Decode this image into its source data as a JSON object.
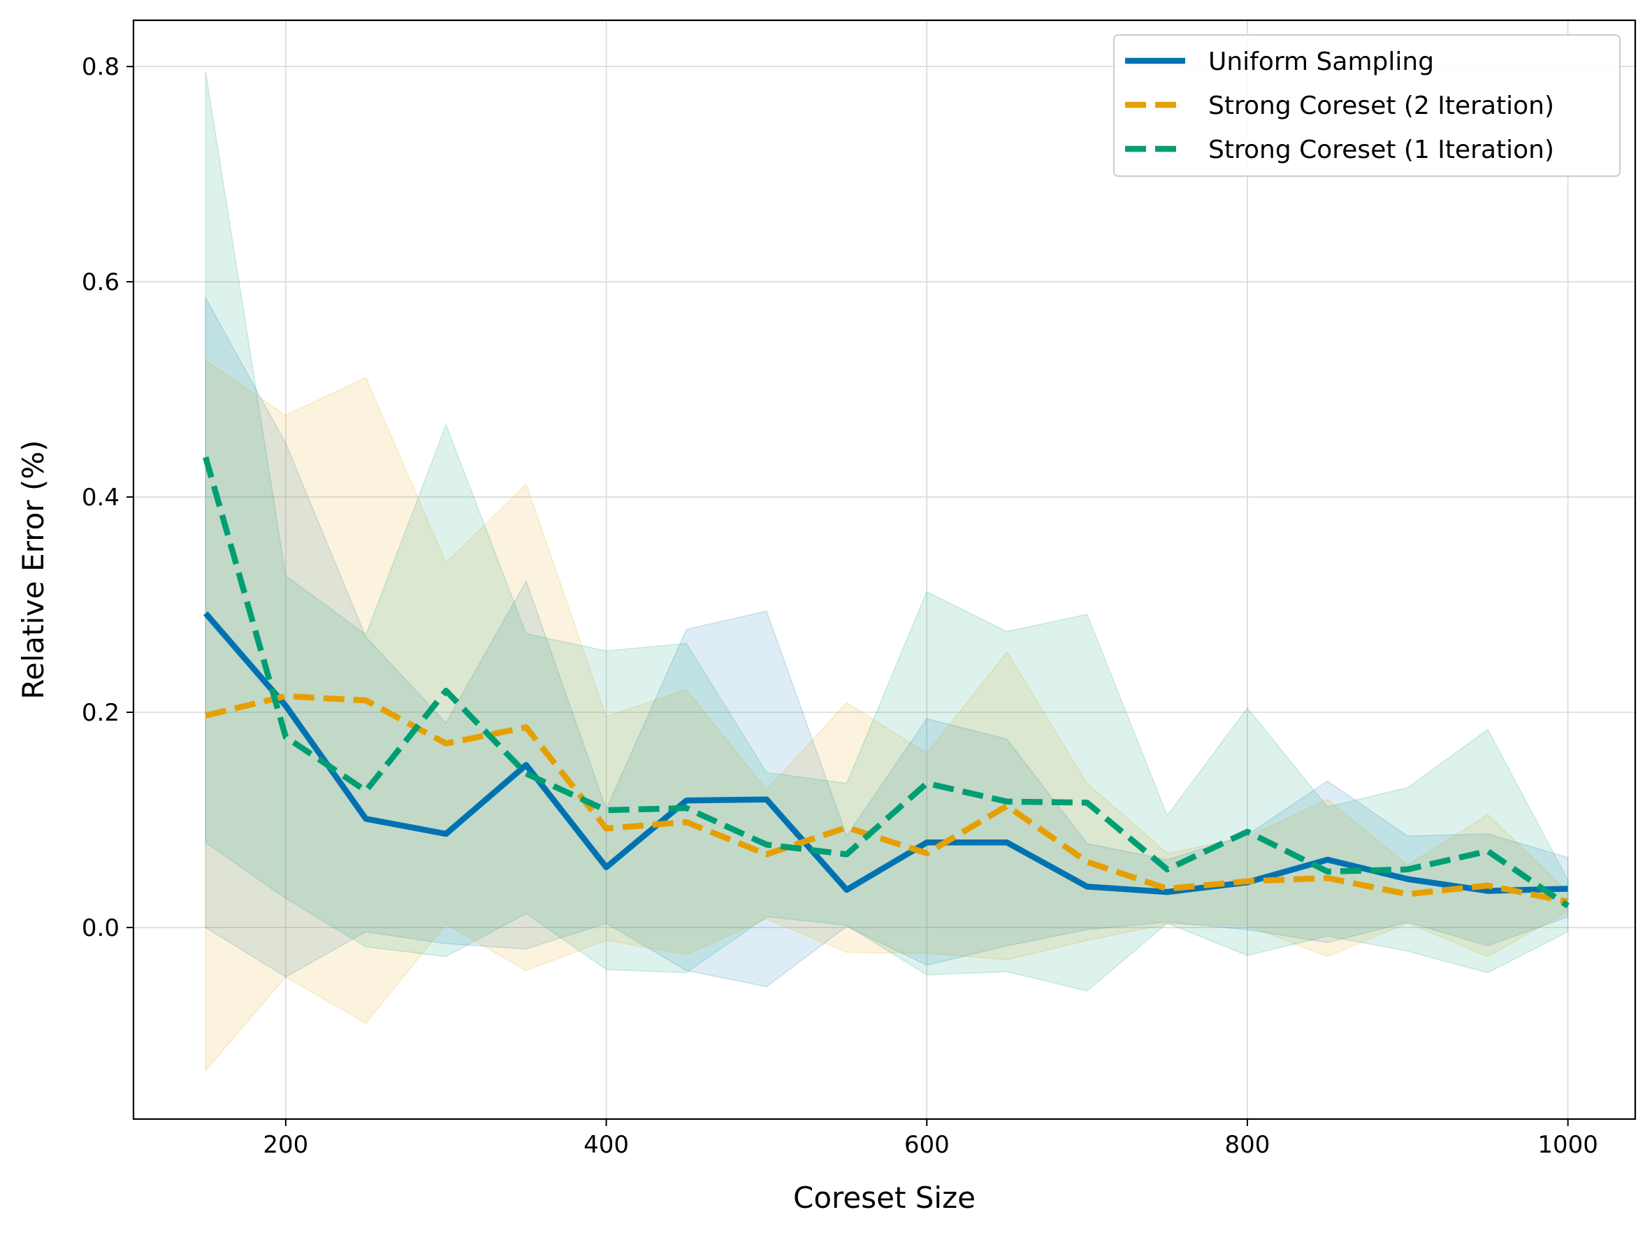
{
  "chart_data": {
    "type": "line",
    "xlabel": "Coreset Size",
    "ylabel": "Relative Error (%)",
    "xlim": [
      105,
      1042
    ],
    "ylim": [
      -0.178,
      0.843
    ],
    "xticks": [
      200,
      400,
      600,
      800,
      1000
    ],
    "xtick_labels": [
      "200",
      "400",
      "600",
      "800",
      "1000"
    ],
    "yticks": [
      0.0,
      0.2,
      0.4,
      0.6,
      0.8
    ],
    "ytick_labels": [
      "0.0",
      "0.2",
      "0.4",
      "0.6",
      "0.8"
    ],
    "grid": true,
    "legend_position": "top-right",
    "x": [
      150,
      200,
      250,
      300,
      350,
      400,
      450,
      500,
      550,
      600,
      650,
      700,
      750,
      800,
      850,
      900,
      950,
      1000
    ],
    "series": [
      {
        "name": "Uniform Sampling",
        "color": "#0072b2",
        "style": "solid",
        "values": [
          0.292,
          0.206,
          0.101,
          0.087,
          0.151,
          0.056,
          0.118,
          0.119,
          0.035,
          0.079,
          0.079,
          0.038,
          0.033,
          0.042,
          0.063,
          0.045,
          0.034,
          0.036
        ],
        "lower": [
          0.0,
          -0.046,
          -0.004,
          -0.015,
          -0.02,
          0.004,
          -0.04,
          -0.055,
          0.001,
          -0.035,
          -0.017,
          -0.002,
          0.005,
          -0.002,
          -0.014,
          0.005,
          -0.017,
          0.01
        ],
        "upper": [
          0.585,
          0.45,
          0.27,
          0.19,
          0.322,
          0.11,
          0.277,
          0.294,
          0.085,
          0.194,
          0.175,
          0.078,
          0.063,
          0.086,
          0.136,
          0.085,
          0.087,
          0.065
        ]
      },
      {
        "name": "Strong Coreset (2 Iteration)",
        "color": "#e69f00",
        "style": "dashed",
        "values": [
          0.197,
          0.215,
          0.211,
          0.171,
          0.186,
          0.092,
          0.098,
          0.068,
          0.093,
          0.069,
          0.113,
          0.061,
          0.036,
          0.043,
          0.046,
          0.031,
          0.039,
          0.024
        ],
        "lower": [
          -0.133,
          -0.046,
          -0.089,
          0.003,
          -0.04,
          -0.012,
          -0.025,
          0.008,
          -0.023,
          -0.024,
          -0.03,
          -0.012,
          0.003,
          0.002,
          -0.027,
          0.004,
          -0.027,
          0.015
        ],
        "upper": [
          0.527,
          0.476,
          0.511,
          0.339,
          0.412,
          0.196,
          0.221,
          0.128,
          0.209,
          0.162,
          0.256,
          0.134,
          0.069,
          0.084,
          0.119,
          0.058,
          0.105,
          0.033
        ]
      },
      {
        "name": "Strong Coreset (1 Iteration)",
        "color": "#009e73",
        "style": "dashed",
        "values": [
          0.437,
          0.177,
          0.127,
          0.22,
          0.143,
          0.109,
          0.111,
          0.077,
          0.068,
          0.134,
          0.117,
          0.116,
          0.054,
          0.089,
          0.052,
          0.054,
          0.071,
          0.02
        ],
        "lower": [
          0.079,
          0.027,
          -0.018,
          -0.027,
          0.013,
          -0.039,
          -0.042,
          0.01,
          0.002,
          -0.044,
          -0.041,
          -0.059,
          0.004,
          -0.026,
          -0.008,
          -0.022,
          -0.042,
          -0.004
        ],
        "upper": [
          0.795,
          0.327,
          0.272,
          0.467,
          0.273,
          0.257,
          0.264,
          0.144,
          0.134,
          0.312,
          0.275,
          0.291,
          0.104,
          0.204,
          0.112,
          0.13,
          0.184,
          0.044
        ]
      }
    ]
  }
}
